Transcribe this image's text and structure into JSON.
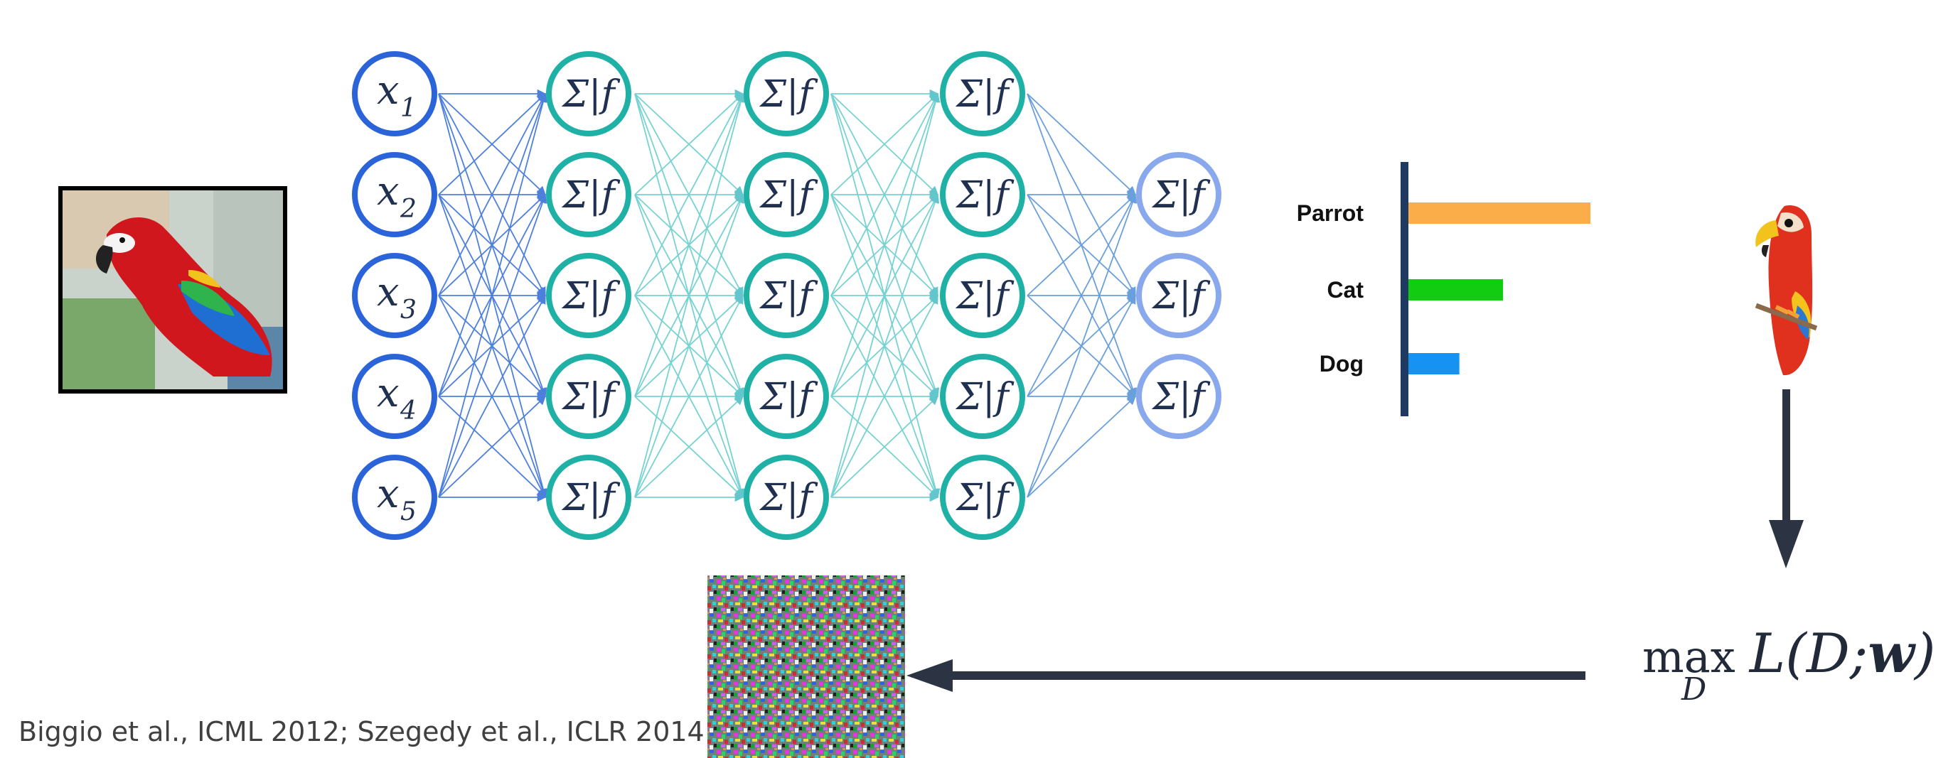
{
  "network": {
    "inputs": [
      "x",
      "x",
      "x",
      "x",
      "x"
    ],
    "input_subscripts": [
      "1",
      "2",
      "3",
      "4",
      "5"
    ],
    "hidden_label": "Σ|f",
    "output_label": "Σ|f",
    "hidden_layers": 3,
    "hidden_units": 5,
    "output_units": 3,
    "colors": {
      "input": "#2b63d9",
      "hidden": "#1fb0a6",
      "output": "#8aa8ec",
      "text": "#1f3050"
    }
  },
  "chart_data": {
    "type": "bar",
    "orientation": "horizontal",
    "categories": [
      "Parrot",
      "Cat",
      "Dog"
    ],
    "values": [
      1.0,
      0.52,
      0.28
    ],
    "colors": [
      "#fbad4a",
      "#12cc12",
      "#1592f2"
    ],
    "xlim": [
      0,
      1
    ]
  },
  "formula": {
    "max": "max",
    "sub": "D",
    "expr_start": "L(D;",
    "expr_bold": "w",
    "expr_end": ")"
  },
  "citation": "Biggio et al., ICML 2012; Szegedy et al., ICLR 2014",
  "images": {
    "photo": "parrot-photo",
    "cartoon": "parrot-cartoon",
    "noise": "adversarial-noise"
  }
}
